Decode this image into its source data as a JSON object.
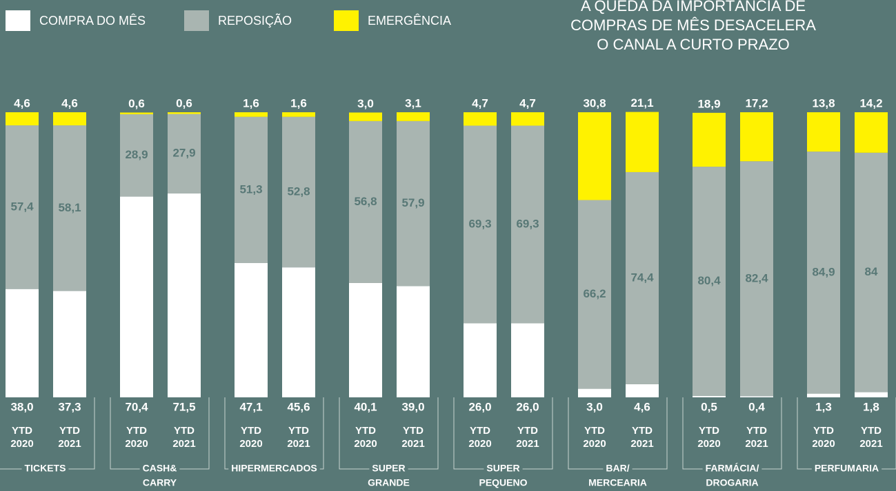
{
  "chart_data": {
    "type": "bar",
    "stacked": true,
    "title": [
      "A QUEDA DA IMPORTÂNCIA DE",
      "COMPRAS DE MÊS DESACELERA",
      "O CANAL A CURTO PRAZO"
    ],
    "groups": [
      [
        "TICKETS"
      ],
      [
        "CASH&",
        "CARRY"
      ],
      [
        "HIPERMERCADOS"
      ],
      [
        "SUPER",
        "GRANDE"
      ],
      [
        "SUPER",
        "PEQUENO"
      ],
      [
        "BAR/",
        "MERCEARIA"
      ],
      [
        "FARMÁCIA/",
        "DROGARIA"
      ],
      [
        "PERFUMARIA"
      ]
    ],
    "categories": [
      [
        "YTD",
        "2020"
      ],
      [
        "YTD",
        "2021"
      ],
      [
        "YTD",
        "2020"
      ],
      [
        "YTD",
        "2021"
      ],
      [
        "YTD",
        "2020"
      ],
      [
        "YTD",
        "2021"
      ],
      [
        "YTD",
        "2020"
      ],
      [
        "YTD",
        "2021"
      ],
      [
        "YTD",
        "2020"
      ],
      [
        "YTD",
        "2021"
      ],
      [
        "YTD",
        "2020"
      ],
      [
        "YTD",
        "2021"
      ],
      [
        "YTD",
        "2020"
      ],
      [
        "YTD",
        "2021"
      ],
      [
        "YTD",
        "2020"
      ],
      [
        "YTD",
        "2021"
      ]
    ],
    "ylim": [
      0,
      100
    ],
    "series": [
      {
        "name": "COMPRA DO MÊS",
        "color": "#ffffff",
        "values": [
          38.0,
          37.3,
          70.4,
          71.5,
          47.1,
          45.6,
          40.1,
          39.0,
          26.0,
          26.0,
          3.0,
          4.6,
          0.5,
          0.4,
          1.3,
          1.8
        ],
        "value_labels": [
          "38,0",
          "37,3",
          "70,4",
          "71,5",
          "47,1",
          "45,6",
          "40,1",
          "39,0",
          "26,0",
          "26,0",
          "3,0",
          "4,6",
          "0,5",
          "0,4",
          "1,3",
          "1,8"
        ]
      },
      {
        "name": "REPOSIÇÃO",
        "color": "#a9b5b1",
        "values": [
          57.4,
          58.1,
          28.9,
          27.9,
          51.3,
          52.8,
          56.8,
          57.9,
          69.3,
          69.3,
          66.2,
          74.4,
          80.4,
          82.4,
          84.9,
          84
        ],
        "value_labels": [
          "57,4",
          "58,1",
          "28,9",
          "27,9",
          "51,3",
          "52,8",
          "56,8",
          "57,9",
          "69,3",
          "69,3",
          "66,2",
          "74,4",
          "80,4",
          "82,4",
          "84,9",
          "84"
        ]
      },
      {
        "name": "EMERGÊNCIA",
        "color": "#fff200",
        "values": [
          4.6,
          4.6,
          0.6,
          0.6,
          1.6,
          1.6,
          3.0,
          3.1,
          4.7,
          4.7,
          30.8,
          21.1,
          18.9,
          17.2,
          13.8,
          14.2
        ],
        "value_labels": [
          "4,6",
          "4,6",
          "0,6",
          "0,6",
          "1,6",
          "1,6",
          "3,0",
          "3,1",
          "4,7",
          "4,7",
          "30,8",
          "21,1",
          "18,9",
          "17,2",
          "13,8",
          "14,2"
        ]
      }
    ]
  }
}
